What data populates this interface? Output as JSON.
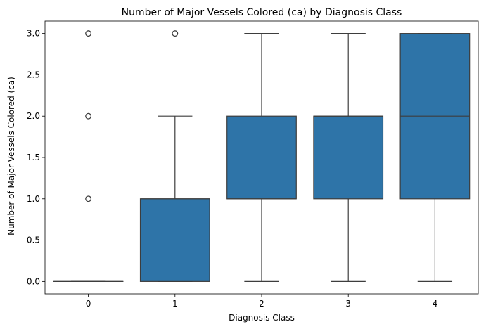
{
  "chart_data": {
    "type": "boxplot",
    "title": "Number of Major Vessels Colored (ca) by Diagnosis Class",
    "xlabel": "Diagnosis Class",
    "ylabel": "Number of Major Vessels Colored (ca)",
    "categories": [
      "0",
      "1",
      "2",
      "3",
      "4"
    ],
    "ylim": [
      -0.15,
      3.15
    ],
    "yticks": [
      0.0,
      0.5,
      1.0,
      1.5,
      2.0,
      2.5,
      3.0
    ],
    "ytick_labels": [
      "0.0",
      "0.5",
      "1.0",
      "1.5",
      "2.0",
      "2.5",
      "3.0"
    ],
    "box_color": "#2e74a8",
    "line_color": "#3d3d3d",
    "grid": false,
    "boxes": [
      {
        "category": "0",
        "whisker_low": 0,
        "q1": 0,
        "median": 0,
        "q3": 0,
        "whisker_high": 0,
        "outliers": [
          1,
          2,
          3
        ]
      },
      {
        "category": "1",
        "whisker_low": 0,
        "q1": 0,
        "median": 1,
        "q3": 1,
        "whisker_high": 2,
        "outliers": [
          3
        ]
      },
      {
        "category": "2",
        "whisker_low": 0,
        "q1": 1,
        "median": 1,
        "q3": 2,
        "whisker_high": 3,
        "outliers": []
      },
      {
        "category": "3",
        "whisker_low": 0,
        "q1": 1,
        "median": 2,
        "q3": 2,
        "whisker_high": 3,
        "outliers": []
      },
      {
        "category": "4",
        "whisker_low": 0,
        "q1": 1,
        "median": 2,
        "q3": 3,
        "whisker_high": 3,
        "outliers": []
      }
    ]
  }
}
